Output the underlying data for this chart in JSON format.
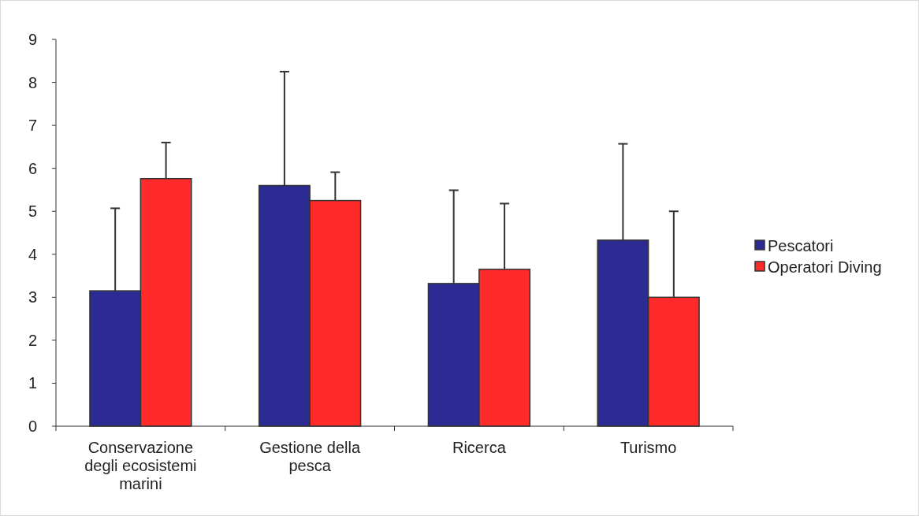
{
  "chart_data": {
    "type": "bar",
    "categories": [
      "Conservazione degli ecosistemi marini",
      "Gestione della pesca",
      "Ricerca",
      "Turismo"
    ],
    "series": [
      {
        "name": "Pescatori",
        "color": "#2b2b93",
        "values": [
          3.15,
          5.6,
          3.32,
          4.33
        ],
        "errors": [
          [
            3.15,
            5.07
          ],
          [
            5.6,
            8.25
          ],
          [
            3.32,
            5.49
          ],
          [
            4.33,
            6.57
          ]
        ]
      },
      {
        "name": "Operatori Diving",
        "color": "#ff2a2a",
        "values": [
          5.76,
          5.25,
          3.65,
          3.0
        ],
        "errors": [
          [
            5.76,
            6.6
          ],
          [
            5.25,
            5.91
          ],
          [
            3.65,
            5.18
          ],
          [
            3.0,
            5.0
          ]
        ]
      }
    ],
    "ylim": [
      0,
      9
    ],
    "yticks": [
      0,
      1,
      2,
      3,
      4,
      5,
      6,
      7,
      8,
      9
    ],
    "grid": false,
    "legend": "right"
  }
}
